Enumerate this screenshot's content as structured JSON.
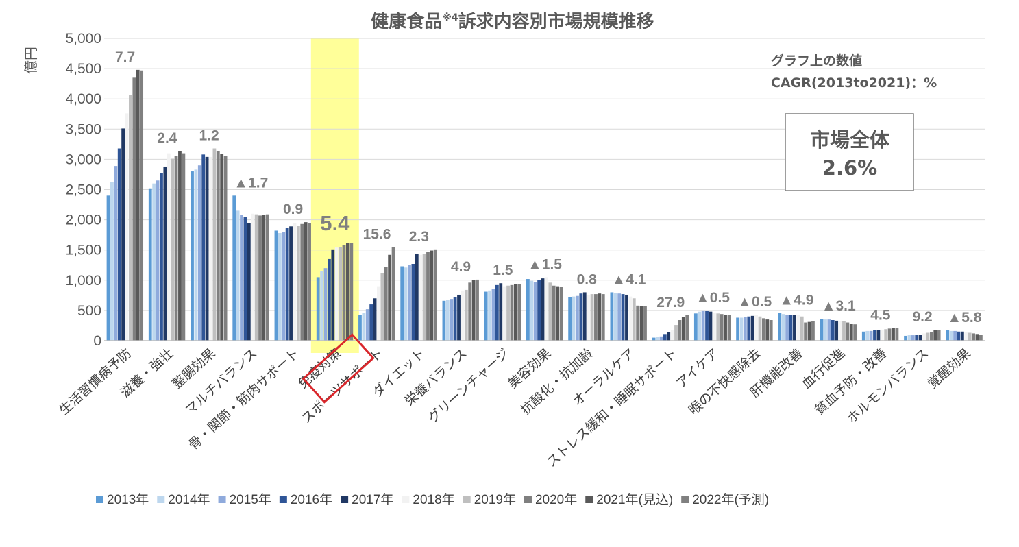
{
  "chart_data": {
    "type": "bar",
    "title": "健康食品",
    "title_sup": "※4",
    "title_rest": "訴求内容別市場規模推移",
    "ylabel": "億円",
    "ylim": [
      0,
      5000
    ],
    "yticks": [
      "0",
      "500",
      "1,000",
      "1,500",
      "2,000",
      "2,500",
      "3,000",
      "3,500",
      "4,000",
      "4,500",
      "5,000"
    ],
    "grid": true,
    "legend_position": "bottom",
    "categories": [
      "生活習慣病予防",
      "滋養・強壮",
      "整腸効果",
      "マルチバランス",
      "骨・関節・筋肉サポート",
      "免疫対策",
      "スポーツサポート",
      "ダイエット",
      "栄養バランス",
      "グリーンチャージ",
      "美容効果",
      "抗酸化・抗加齢",
      "オーラルケア",
      "ストレス緩和・睡眠サポート",
      "アイケア",
      "喉の不快感除去",
      "肝機能改善",
      "血行促進",
      "貧血予防・改善",
      "ホルモンバランス",
      "覚醒効果"
    ],
    "cagr_labels": [
      "7.7",
      "2.4",
      "1.2",
      "▲1.7",
      "0.9",
      "5.4",
      "15.6",
      "2.3",
      "4.9",
      "1.5",
      "▲1.5",
      "0.8",
      "▲4.1",
      "27.9",
      "▲0.5",
      "▲0.5",
      "▲4.9",
      "▲3.1",
      "4.5",
      "9.2",
      "▲5.8"
    ],
    "highlight_category": "免疫対策",
    "series": [
      {
        "name": "2013年",
        "color": "#5b9bd5",
        "values": [
          2400,
          2520,
          2800,
          2400,
          1820,
          1050,
          430,
          1230,
          660,
          810,
          1020,
          720,
          800,
          50,
          450,
          380,
          460,
          360,
          150,
          80,
          170
        ]
      },
      {
        "name": "2014年",
        "color": "#bdd7ee",
        "values": [
          2620,
          2600,
          2830,
          2150,
          1780,
          1150,
          460,
          1210,
          670,
          830,
          990,
          730,
          790,
          60,
          480,
          380,
          440,
          350,
          160,
          90,
          160
        ]
      },
      {
        "name": "2015年",
        "color": "#8faadc",
        "values": [
          2890,
          2650,
          2900,
          2080,
          1800,
          1200,
          520,
          1250,
          690,
          850,
          970,
          740,
          780,
          70,
          500,
          390,
          430,
          350,
          160,
          90,
          160
        ]
      },
      {
        "name": "2016年",
        "color": "#2f5597",
        "values": [
          3180,
          2770,
          3080,
          2050,
          1860,
          1350,
          600,
          1270,
          720,
          920,
          1000,
          780,
          770,
          110,
          490,
          400,
          430,
          340,
          170,
          100,
          150
        ]
      },
      {
        "name": "2017年",
        "color": "#203864",
        "values": [
          3510,
          2880,
          3040,
          1950,
          1890,
          1510,
          700,
          1440,
          760,
          950,
          1030,
          800,
          760,
          140,
          480,
          410,
          420,
          330,
          180,
          100,
          150
        ]
      },
      {
        "name": "2018年",
        "color": "#f2f2f2",
        "values": [
          3760,
          3100,
          3040,
          2100,
          1950,
          1540,
          900,
          1420,
          830,
          900,
          1050,
          760,
          730,
          170,
          460,
          430,
          420,
          330,
          180,
          120,
          140
        ]
      },
      {
        "name": "2019年",
        "color": "#bfbfbf",
        "values": [
          4060,
          3010,
          3180,
          2090,
          1900,
          1550,
          1120,
          1430,
          840,
          910,
          960,
          770,
          700,
          260,
          450,
          400,
          400,
          320,
          190,
          130,
          130
        ]
      },
      {
        "name": "2020年",
        "color": "#7f7f7f",
        "values": [
          4350,
          3060,
          3130,
          2070,
          1930,
          1580,
          1220,
          1470,
          960,
          920,
          910,
          770,
          580,
          340,
          440,
          370,
          300,
          300,
          200,
          140,
          120
        ]
      },
      {
        "name": "2021年(見込)",
        "color": "#595959",
        "values": [
          4480,
          3140,
          3090,
          2080,
          1960,
          1610,
          1420,
          1490,
          1000,
          930,
          900,
          780,
          570,
          390,
          430,
          350,
          310,
          280,
          210,
          170,
          110
        ]
      },
      {
        "name": "2022年(予測)",
        "color": "#808080",
        "values": [
          4470,
          3100,
          3060,
          2090,
          1950,
          1620,
          1550,
          1510,
          1010,
          940,
          890,
          770,
          570,
          420,
          430,
          340,
          320,
          270,
          210,
          180,
          100
        ]
      }
    ]
  },
  "note": {
    "line1": "グラフ上の数値",
    "line2": "CAGR(2013to2021)：%"
  },
  "market_box": {
    "label": "市場全体",
    "value": "2.6%"
  }
}
